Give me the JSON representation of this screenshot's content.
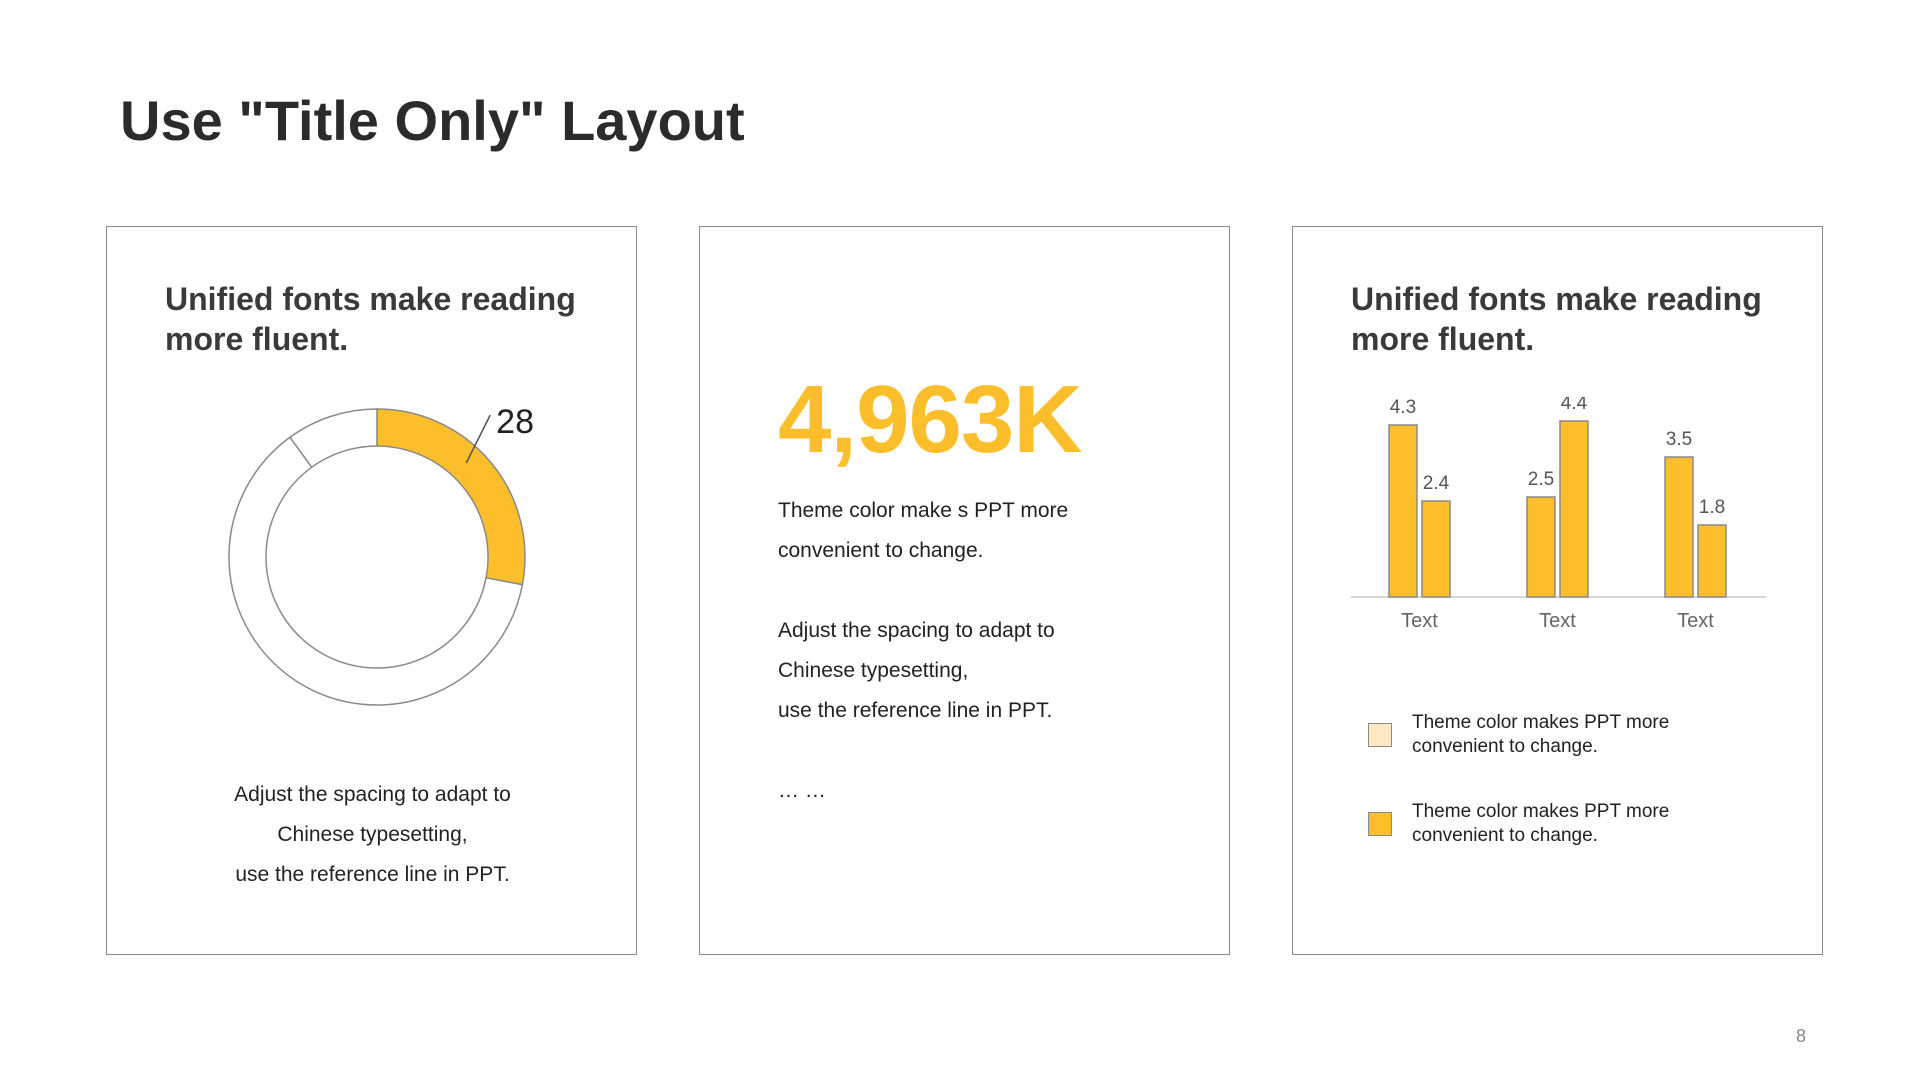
{
  "title": "Use \"Title Only\" Layout",
  "page_number": "8",
  "colors": {
    "accent": "#fcbf2b",
    "accent_light": "#fde8c2",
    "border": "#8a8a8a",
    "text": "#222222"
  },
  "card1": {
    "heading_line1": "Unified fonts make reading",
    "heading_line2": "more fluent.",
    "donut_label": "28",
    "text_line1": "Adjust the spacing to adapt to",
    "text_line2": "Chinese typesetting,",
    "text_line3": "use the reference line in PPT."
  },
  "card2": {
    "big_number": "4,963K",
    "line1": "Theme  color make s PPT more",
    "line2": "convenient  to change.",
    "line3": "Adjust the spacing to adapt to",
    "line4": "Chinese typesetting,",
    "line5": "use the reference line in PPT.",
    "line6": "… …"
  },
  "card3": {
    "heading_line1": "Unified fonts make reading",
    "heading_line2": "more fluent.",
    "legend": [
      {
        "line1": "Theme  color makes PPT more",
        "line2": "convenient  to change.",
        "color": "#fde8c2"
      },
      {
        "line1": "Theme  color makes PPT more",
        "line2": "convenient  to change.",
        "color": "#fcbf2b"
      }
    ]
  },
  "chart_data": [
    {
      "type": "pie",
      "values": [
        28,
        62,
        10
      ],
      "labels": [
        "28",
        "",
        ""
      ],
      "colors": [
        "#fcbf2b",
        "#ffffff",
        "#ffffff"
      ],
      "donut": true
    },
    {
      "type": "bar",
      "categories": [
        "Text",
        "Text",
        "Text"
      ],
      "series": [
        {
          "values": [
            4.3,
            2.5,
            3.5
          ]
        },
        {
          "values": [
            2.4,
            4.4,
            1.8
          ]
        }
      ],
      "ylim": [
        0,
        5
      ],
      "grid": false
    }
  ]
}
